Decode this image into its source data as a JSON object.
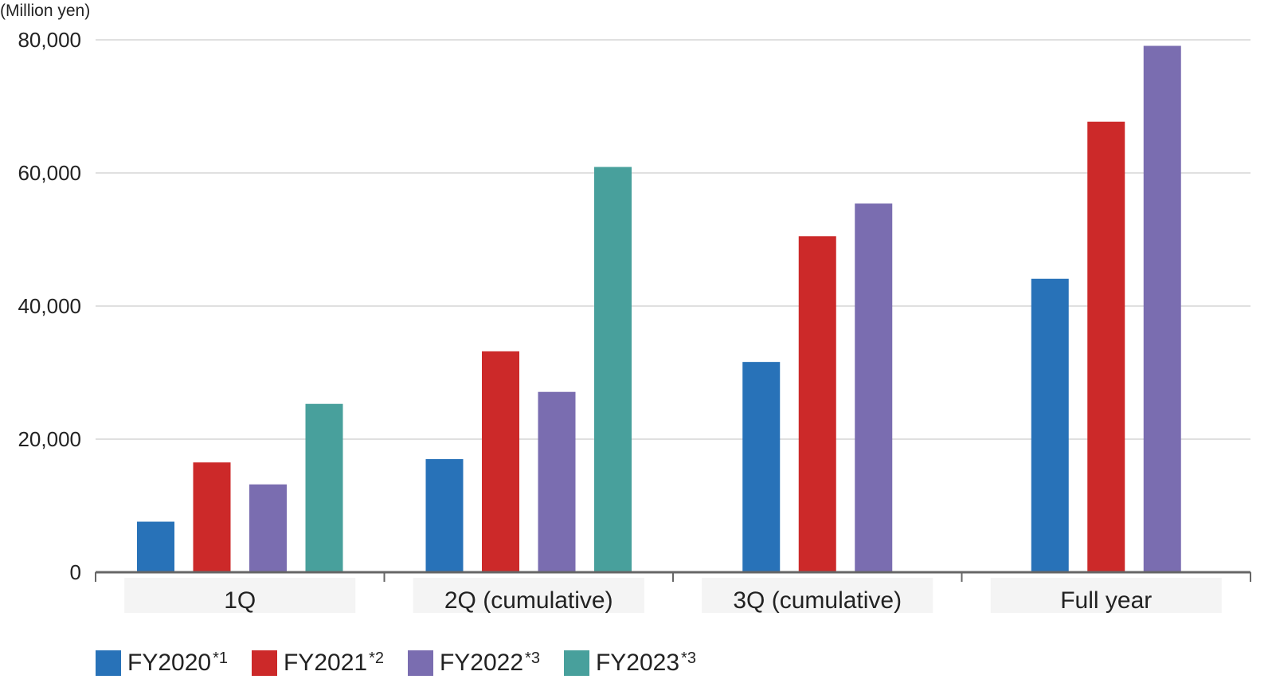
{
  "chart_data": {
    "type": "bar",
    "unit_label": "(Million yen)",
    "categories": [
      "1Q",
      "2Q (cumulative)",
      "3Q (cumulative)",
      "Full year"
    ],
    "series": [
      {
        "name": "FY2020",
        "note": "*1",
        "color": "#2872b8",
        "values": [
          7600,
          17000,
          31600,
          44100
        ]
      },
      {
        "name": "FY2021",
        "note": "*2",
        "color": "#cc2929",
        "values": [
          16500,
          33200,
          50500,
          67700
        ]
      },
      {
        "name": "FY2022",
        "note": "*3",
        "color": "#7a6db0",
        "values": [
          13200,
          27100,
          55400,
          79100
        ]
      },
      {
        "name": "FY2023",
        "note": "*3",
        "color": "#48a09c",
        "values": [
          25300,
          60900,
          null,
          null
        ]
      }
    ],
    "y_ticks": [
      "0",
      "20,000",
      "40,000",
      "60,000",
      "80,000"
    ],
    "ylim": [
      0,
      80000
    ],
    "grid": true,
    "legend_position": "bottom-left"
  }
}
